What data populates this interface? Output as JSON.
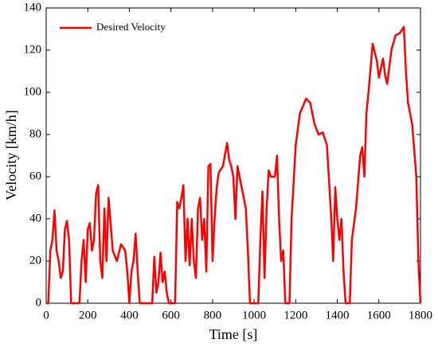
{
  "chart_data": {
    "type": "line",
    "xlabel": "Time [s]",
    "ylabel": "Velocity [km/h]",
    "xlim": [
      0,
      1800
    ],
    "xticks": [
      0,
      200,
      400,
      600,
      800,
      1000,
      1200,
      1400,
      1600,
      1800
    ],
    "ylim": [
      0,
      140
    ],
    "yticks": [
      0,
      20,
      40,
      60,
      80,
      100,
      120,
      140
    ],
    "legend": "upper left",
    "grid": false,
    "x": [
      0,
      10,
      20,
      30,
      40,
      50,
      60,
      70,
      80,
      90,
      100,
      110,
      120,
      130,
      160,
      170,
      180,
      190,
      200,
      210,
      220,
      230,
      240,
      250,
      260,
      270,
      280,
      290,
      300,
      320,
      340,
      360,
      380,
      390,
      400,
      410,
      420,
      430,
      440,
      450,
      510,
      520,
      530,
      540,
      550,
      560,
      570,
      580,
      590,
      620,
      630,
      640,
      650,
      660,
      670,
      680,
      690,
      700,
      710,
      720,
      730,
      740,
      750,
      760,
      770,
      780,
      790,
      800,
      810,
      820,
      830,
      850,
      870,
      880,
      890,
      900,
      910,
      920,
      940,
      960,
      970,
      980,
      1020,
      1030,
      1040,
      1050,
      1060,
      1070,
      1080,
      1100,
      1110,
      1120,
      1130,
      1140,
      1150,
      1170,
      1180,
      1200,
      1220,
      1250,
      1270,
      1290,
      1310,
      1330,
      1350,
      1370,
      1380,
      1390,
      1400,
      1410,
      1420,
      1430,
      1440,
      1460,
      1470,
      1490,
      1510,
      1520,
      1530,
      1540,
      1550,
      1570,
      1590,
      1600,
      1620,
      1630,
      1640,
      1660,
      1680,
      1700,
      1720,
      1730,
      1740,
      1760,
      1780,
      1790,
      1800
    ],
    "series": [
      {
        "name": "Desired Velocity",
        "color": "#ff0000",
        "values": [
          0,
          0,
          25,
          30,
          44,
          25,
          20,
          12,
          15,
          35,
          39,
          30,
          0,
          0,
          0,
          20,
          30,
          10,
          35,
          38,
          25,
          30,
          52,
          56,
          20,
          12,
          45,
          20,
          50,
          25,
          20,
          28,
          25,
          15,
          0,
          15,
          20,
          33,
          15,
          0,
          0,
          22,
          5,
          10,
          24,
          10,
          15,
          5,
          0,
          0,
          48,
          45,
          50,
          56,
          20,
          40,
          18,
          40,
          20,
          12,
          45,
          50,
          30,
          40,
          15,
          65,
          66,
          20,
          40,
          55,
          62,
          65,
          76,
          68,
          65,
          60,
          40,
          65,
          55,
          45,
          25,
          0,
          0,
          30,
          53,
          12,
          45,
          63,
          60,
          60,
          70,
          40,
          20,
          25,
          0,
          0,
          40,
          75,
          90,
          97,
          95,
          85,
          80,
          81,
          75,
          42,
          20,
          55,
          40,
          30,
          40,
          15,
          0,
          0,
          30,
          45,
          70,
          74,
          60,
          90,
          100,
          123,
          115,
          107,
          116,
          108,
          104,
          120,
          127,
          128,
          131,
          110,
          95,
          85,
          60,
          20,
          0
        ]
      }
    ]
  }
}
